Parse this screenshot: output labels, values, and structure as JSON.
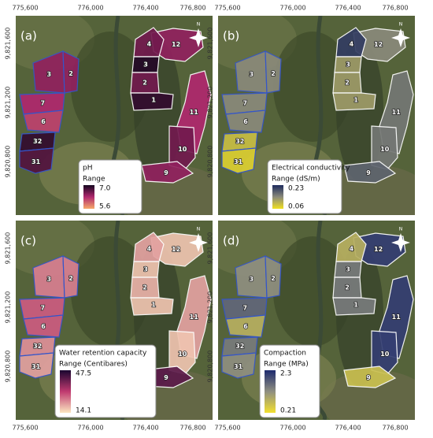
{
  "axes": {
    "x_labels": [
      "775,600",
      "776,000",
      "776,400",
      "776,800"
    ],
    "y_labels": [
      "9,821,600",
      "9,821,200",
      "9,820,800"
    ]
  },
  "north": "N",
  "panels": [
    {
      "label": "(a)",
      "legend_title": "pH",
      "range_label": "Range",
      "max": "7.0",
      "min": "5.6",
      "colors": [
        "#f6a96a",
        "#b0286e",
        "#14051f"
      ]
    },
    {
      "label": "(b)",
      "legend_title": "Electrical conductivity",
      "range_label": "Range (dS/m)",
      "max": "0.23",
      "min": "0.06",
      "colors": [
        "#f0e020",
        "#8a8a7a",
        "#1d2a5c"
      ]
    },
    {
      "label": "(c)",
      "legend_title": "Water retention capacity",
      "range_label": "Range (Centibares)",
      "max": "47.5",
      "min": "14.1",
      "colors": [
        "#fbe6c0",
        "#c03a70",
        "#1a0630"
      ]
    },
    {
      "label": "(d)",
      "legend_title": "Compaction",
      "range_label": "Range (MPa)",
      "max": "2.3",
      "min": "0.21",
      "colors": [
        "#f2e030",
        "#8f8f80",
        "#1d2a6e"
      ]
    }
  ],
  "plots": [
    "12",
    "4",
    "3",
    "2",
    "1",
    "11",
    "10",
    "9",
    "3",
    "2",
    "7",
    "6",
    "32",
    "31"
  ]
}
